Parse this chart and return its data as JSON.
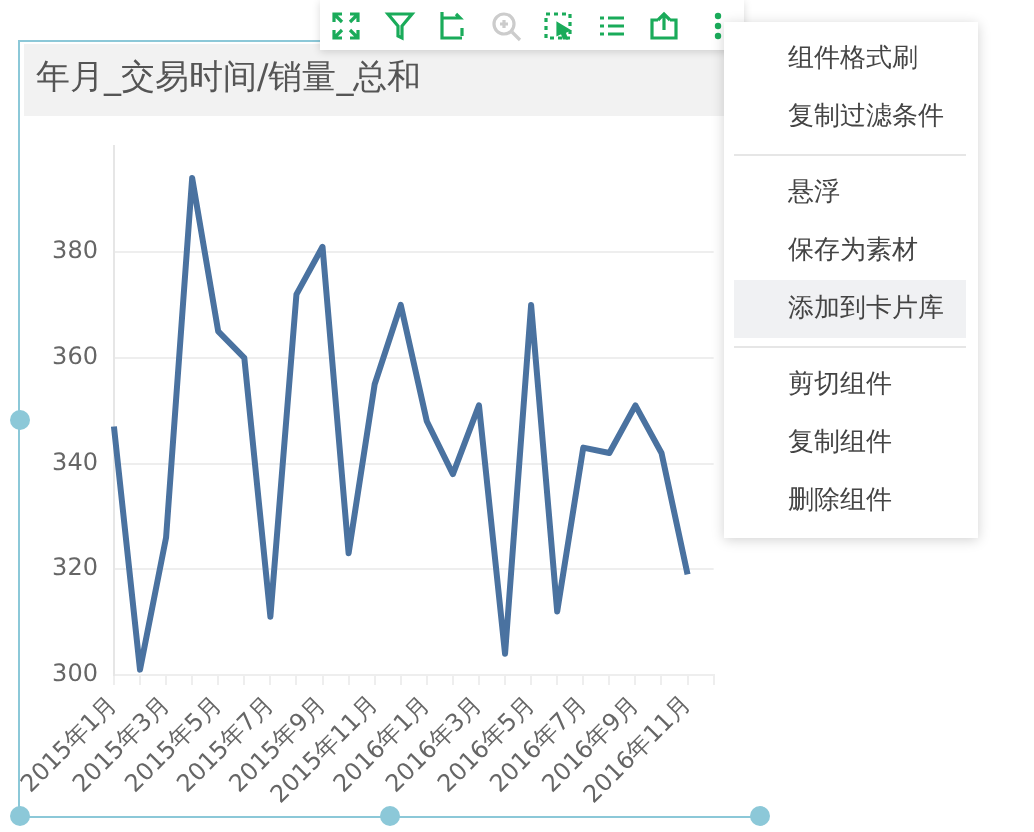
{
  "chart_data": {
    "type": "line",
    "title": "年月_交易时间/销量_总和",
    "categories": [
      "2015年1月",
      null,
      "2015年3月",
      null,
      "2015年5月",
      null,
      "2015年7月",
      null,
      "2015年9月",
      null,
      "2015年11月",
      null,
      "2016年1月",
      null,
      "2016年3月",
      null,
      "2016年5月",
      null,
      "2016年7月",
      null,
      "2016年9月",
      null,
      "2016年11月",
      null
    ],
    "series": [
      {
        "color": "#4a72a0",
        "values": [
          347,
          301,
          326,
          394,
          365,
          360,
          311,
          372,
          381,
          323,
          355,
          370,
          348,
          338,
          351,
          304,
          370,
          312,
          343,
          342,
          351,
          342,
          319,
          null
        ]
      }
    ],
    "ylim": [
      300,
      400
    ],
    "yticks": [
      300,
      320,
      340,
      360,
      380
    ],
    "grid": "y",
    "marker": "none",
    "line_style": "solid",
    "legend": false,
    "annotations": [
      "组件格式刷",
      "复制过滤条件",
      "悬浮",
      "保存为素材",
      "添加到卡片库",
      "剪切组件",
      "复制组件",
      "删除组件"
    ]
  }
}
